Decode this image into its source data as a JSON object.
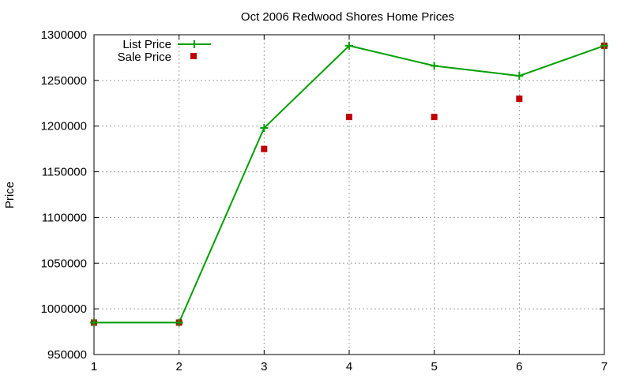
{
  "chart_data": {
    "type": "line",
    "title": "Oct 2006 Redwood Shores Home Prices",
    "xlabel": "",
    "ylabel": "Price",
    "x": [
      1,
      2,
      3,
      4,
      5,
      6,
      7
    ],
    "xlim": [
      1,
      7
    ],
    "ylim": [
      950000,
      1300000
    ],
    "xticks": [
      "1",
      "2",
      "3",
      "4",
      "5",
      "6",
      "7"
    ],
    "yticks": [
      "950000",
      "1000000",
      "1050000",
      "1100000",
      "1150000",
      "1200000",
      "1250000",
      "1300000"
    ],
    "grid": true,
    "legend_position": "top-left",
    "series": [
      {
        "name": "List Price",
        "style": "line+plus",
        "color": "#00a000",
        "values": [
          985000,
          985000,
          1198000,
          1288000,
          1266000,
          1255000,
          1288000
        ]
      },
      {
        "name": "Sale Price",
        "style": "square-markers",
        "color": "#c00000",
        "values": [
          985000,
          985000,
          1175000,
          1210000,
          1210000,
          1230000,
          1288000
        ]
      }
    ]
  }
}
